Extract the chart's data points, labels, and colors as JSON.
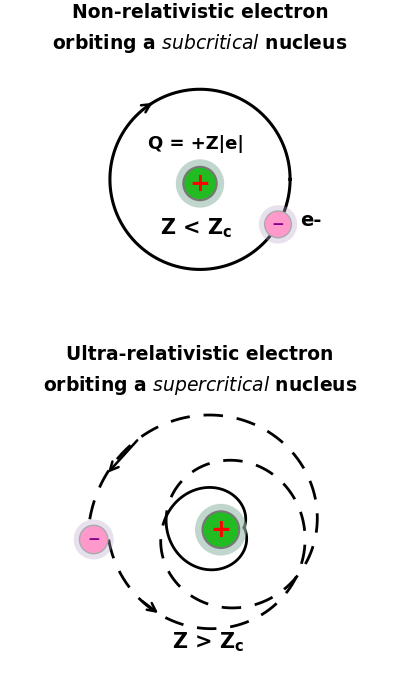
{
  "bg_color": "#ffffff",
  "title1_line1": "Non-relativistic electron",
  "title1_line2_normal": "orbiting a ",
  "title1_line2_italic": "subcritical",
  "title1_line2_end": " nucleus",
  "title2_line1": "Ultra-relativistic electron",
  "title2_line2_normal": "orbiting a ",
  "title2_line2_italic": "supercritical",
  "title2_line2_end": " nucleus",
  "charge_label": "Q = +Z|e|",
  "nucleus_color": "#22bb22",
  "nucleus_edge_color": "#777777",
  "nucleus_halo_color": "#99bbaa",
  "electron_color_top": "#ff99cc",
  "electron_color_bot": "#ff99cc",
  "electron_edge_color": "#aaaaaa",
  "electron_halo_color": "#bbaacc",
  "plus_color": "#ff0000",
  "minus_color": "#880088",
  "orbit_color": "#000000",
  "text_color": "#000000",
  "title_fontsize": 13.5,
  "label_fontsize": 15,
  "annot_fontsize": 13,
  "charge_fontsize": 13
}
